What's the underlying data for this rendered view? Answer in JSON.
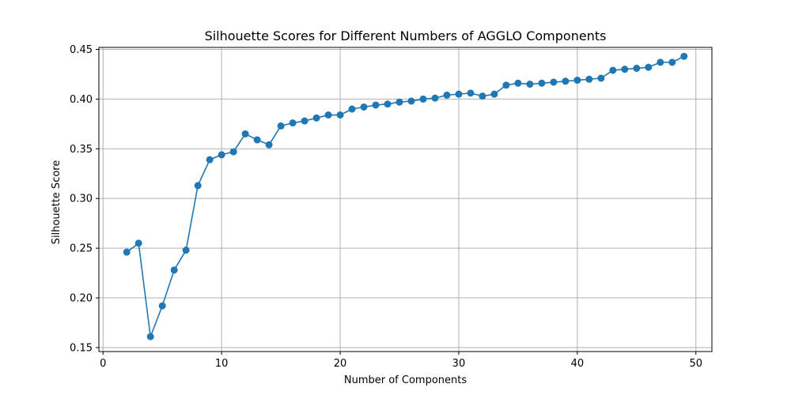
{
  "chart_data": {
    "type": "line",
    "title": "Silhouette Scores for Different Numbers of AGGLO Components",
    "xlabel": "Number of Components",
    "ylabel": "Silhouette Score",
    "xlim": [
      -0.35,
      51.35
    ],
    "ylim": [
      0.146,
      0.452
    ],
    "xticks": [
      0,
      10,
      20,
      30,
      40,
      50
    ],
    "yticks": [
      0.15,
      0.2,
      0.25,
      0.3,
      0.35,
      0.4,
      0.45
    ],
    "xtick_labels": [
      "0",
      "10",
      "20",
      "30",
      "40",
      "50"
    ],
    "ytick_labels": [
      "0.15",
      "0.20",
      "0.25",
      "0.30",
      "0.35",
      "0.40",
      "0.45"
    ],
    "grid": true,
    "line_color": "#1f77b4",
    "marker": "circle",
    "series": [
      {
        "x": [
          2,
          3,
          4,
          5,
          6,
          7,
          8,
          9,
          10,
          11,
          12,
          13,
          14,
          15,
          16,
          17,
          18,
          19,
          20,
          21,
          22,
          23,
          24,
          25,
          26,
          27,
          28,
          29,
          30,
          31,
          32,
          33,
          34,
          35,
          36,
          37,
          38,
          39,
          40,
          41,
          42,
          43,
          44,
          45,
          46,
          47,
          48,
          49
        ],
        "values": [
          0.246,
          0.255,
          0.161,
          0.192,
          0.228,
          0.248,
          0.313,
          0.339,
          0.344,
          0.347,
          0.365,
          0.359,
          0.354,
          0.373,
          0.376,
          0.378,
          0.381,
          0.384,
          0.384,
          0.39,
          0.392,
          0.394,
          0.395,
          0.397,
          0.398,
          0.4,
          0.401,
          0.404,
          0.405,
          0.406,
          0.403,
          0.405,
          0.414,
          0.416,
          0.415,
          0.416,
          0.417,
          0.418,
          0.419,
          0.42,
          0.421,
          0.429,
          0.43,
          0.431,
          0.432,
          0.437,
          0.437,
          0.443
        ]
      }
    ]
  }
}
